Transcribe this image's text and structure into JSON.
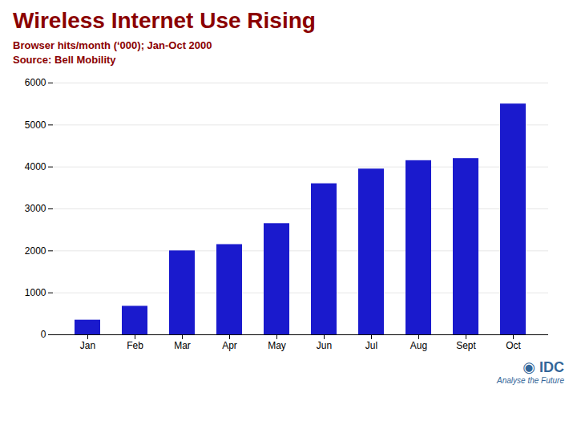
{
  "chart_data": {
    "type": "bar",
    "title": "Wireless Internet Use Rising",
    "subtitle": [
      "Browser hits/month (‘000); Jan-Oct 2000",
      "Source: Bell Mobility"
    ],
    "annotations": [
      "◉ IDC",
      "Analyse the Future"
    ],
    "categories": [
      "Jan",
      "Feb",
      "Mar",
      "Apr",
      "May",
      "Jun",
      "Jul",
      "Aug",
      "Sept",
      "Oct"
    ],
    "values": [
      350,
      680,
      2000,
      2150,
      2650,
      3600,
      3950,
      4150,
      4200,
      5500
    ],
    "color": "#1a1acd",
    "ylim": [
      0,
      6000
    ],
    "yticks": [
      0,
      1000,
      2000,
      3000,
      4000,
      5000,
      6000
    ],
    "grid": true
  }
}
